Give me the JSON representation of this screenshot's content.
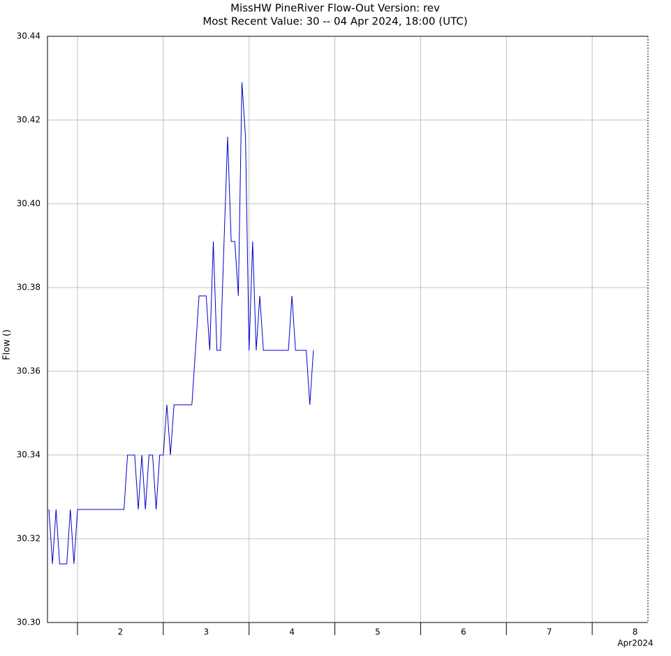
{
  "chart_data": {
    "type": "line",
    "title": "MissHW  PineRiver  Flow-Out  Version: rev",
    "subtitle": "Most Recent Value: 30  --  04 Apr 2024, 18:00 (UTC)",
    "ylabel": "Flow ()",
    "x_axis_note": "Apr2024",
    "color": "#0000cc",
    "grid": true,
    "x": [
      "2024-04-01T16:00",
      "2024-04-01T17:00",
      "2024-04-01T18:00",
      "2024-04-01T19:00",
      "2024-04-01T20:00",
      "2024-04-01T21:00",
      "2024-04-01T22:00",
      "2024-04-01T23:00",
      "2024-04-02T00:00",
      "2024-04-02T01:00",
      "2024-04-02T02:00",
      "2024-04-02T03:00",
      "2024-04-02T04:00",
      "2024-04-02T05:00",
      "2024-04-02T06:00",
      "2024-04-02T07:00",
      "2024-04-02T08:00",
      "2024-04-02T09:00",
      "2024-04-02T10:00",
      "2024-04-02T11:00",
      "2024-04-02T12:00",
      "2024-04-02T13:00",
      "2024-04-02T14:00",
      "2024-04-02T15:00",
      "2024-04-02T16:00",
      "2024-04-02T17:00",
      "2024-04-02T18:00",
      "2024-04-02T19:00",
      "2024-04-02T20:00",
      "2024-04-02T21:00",
      "2024-04-02T22:00",
      "2024-04-02T23:00",
      "2024-04-03T00:00",
      "2024-04-03T01:00",
      "2024-04-03T02:00",
      "2024-04-03T03:00",
      "2024-04-03T04:00",
      "2024-04-03T05:00",
      "2024-04-03T06:00",
      "2024-04-03T07:00",
      "2024-04-03T08:00",
      "2024-04-03T09:00",
      "2024-04-03T10:00",
      "2024-04-03T11:00",
      "2024-04-03T12:00",
      "2024-04-03T13:00",
      "2024-04-03T14:00",
      "2024-04-03T15:00",
      "2024-04-03T16:00",
      "2024-04-03T17:00",
      "2024-04-03T18:00",
      "2024-04-03T19:00",
      "2024-04-03T20:00",
      "2024-04-03T21:00",
      "2024-04-03T22:00",
      "2024-04-03T23:00",
      "2024-04-04T00:00",
      "2024-04-04T01:00",
      "2024-04-04T02:00",
      "2024-04-04T03:00",
      "2024-04-04T04:00",
      "2024-04-04T05:00",
      "2024-04-04T06:00",
      "2024-04-04T07:00",
      "2024-04-04T08:00",
      "2024-04-04T09:00",
      "2024-04-04T10:00",
      "2024-04-04T11:00",
      "2024-04-04T12:00",
      "2024-04-04T13:00",
      "2024-04-04T14:00",
      "2024-04-04T15:00",
      "2024-04-04T16:00",
      "2024-04-04T17:00",
      "2024-04-04T18:00"
    ],
    "values": [
      30.327,
      30.314,
      30.327,
      30.314,
      30.314,
      30.314,
      30.327,
      30.314,
      30.327,
      30.327,
      30.327,
      30.327,
      30.327,
      30.327,
      30.327,
      30.327,
      30.327,
      30.327,
      30.327,
      30.327,
      30.327,
      30.327,
      30.34,
      30.34,
      30.34,
      30.327,
      30.34,
      30.327,
      30.34,
      30.34,
      30.327,
      30.34,
      30.34,
      30.352,
      30.34,
      30.352,
      30.352,
      30.352,
      30.352,
      30.352,
      30.352,
      30.365,
      30.378,
      30.378,
      30.378,
      30.365,
      30.391,
      30.365,
      30.365,
      30.391,
      30.416,
      30.391,
      30.391,
      30.378,
      30.429,
      30.416,
      30.365,
      30.391,
      30.365,
      30.378,
      30.365,
      30.365,
      30.365,
      30.365,
      30.365,
      30.365,
      30.365,
      30.365,
      30.378,
      30.365,
      30.365,
      30.365,
      30.365,
      30.352,
      30.365
    ],
    "xlim": [
      "2024-04-01T15:36",
      "2024-04-08T15:36"
    ],
    "xticks": [
      {
        "value": "2024-04-02T00:00",
        "label": "2"
      },
      {
        "value": "2024-04-03T00:00",
        "label": "3"
      },
      {
        "value": "2024-04-04T00:00",
        "label": "4"
      },
      {
        "value": "2024-04-05T00:00",
        "label": "5"
      },
      {
        "value": "2024-04-06T00:00",
        "label": "6"
      },
      {
        "value": "2024-04-07T00:00",
        "label": "7"
      },
      {
        "value": "2024-04-08T00:00",
        "label": "8"
      }
    ],
    "ylim": [
      30.3,
      30.44
    ],
    "yticks": [
      {
        "value": 30.3,
        "label": "30.30"
      },
      30.32,
      30.34,
      30.36,
      30.38,
      {
        "value": 30.4,
        "label": "30.40"
      },
      30.42,
      30.44
    ]
  }
}
